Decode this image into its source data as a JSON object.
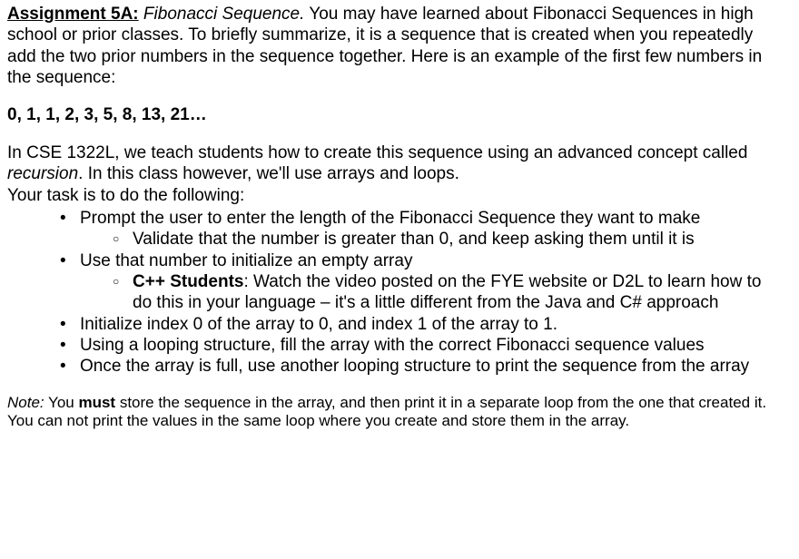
{
  "header": {
    "assignment_label": "Assignment 5A:",
    "title_italic": "Fibonacci Sequence.",
    "intro_rest": " You may have learned about Fibonacci Sequences in high school or prior classes. To briefly summarize, it is a sequence that is created when you repeatedly add the two prior numbers in the sequence together. Here is an example of the first few numbers in the sequence:"
  },
  "sequence_line": "0, 1, 1, 2, 3, 5, 8, 13, 21…",
  "para2": {
    "line1_a": "In CSE 1322L, we teach students how to create this sequence using an advanced concept called ",
    "line1_italic": "recursion",
    "line1_b": ". In this class however, we'll use arrays and loops.",
    "line2": "Your task is to do the following:"
  },
  "bullets": [
    {
      "text": "Prompt the user to enter the length of the Fibonacci Sequence they want to make",
      "sub": [
        {
          "bold": "",
          "text": "Validate that the number is greater than 0, and keep asking them until it is"
        }
      ]
    },
    {
      "text": "Use that number to initialize an empty array",
      "sub": [
        {
          "bold": "C++ Students",
          "text": ": Watch the video posted on the FYE website or D2L to learn how to do this in your language – it's a little different from the Java and C# approach"
        }
      ]
    },
    {
      "text": "Initialize index 0 of the array to 0, and index 1 of the array to 1."
    },
    {
      "text": "Using a looping structure, fill the array with the correct Fibonacci sequence values"
    },
    {
      "text": "Once the array is full, use another looping structure to print the sequence from the array"
    }
  ],
  "note": {
    "prefix_italic": "Note:",
    "a": " You ",
    "bold": "must",
    "b": " store the sequence in the array, and then print it in a separate loop from the one that created it. You can not print the values in the same loop where you create and store them in the array."
  }
}
